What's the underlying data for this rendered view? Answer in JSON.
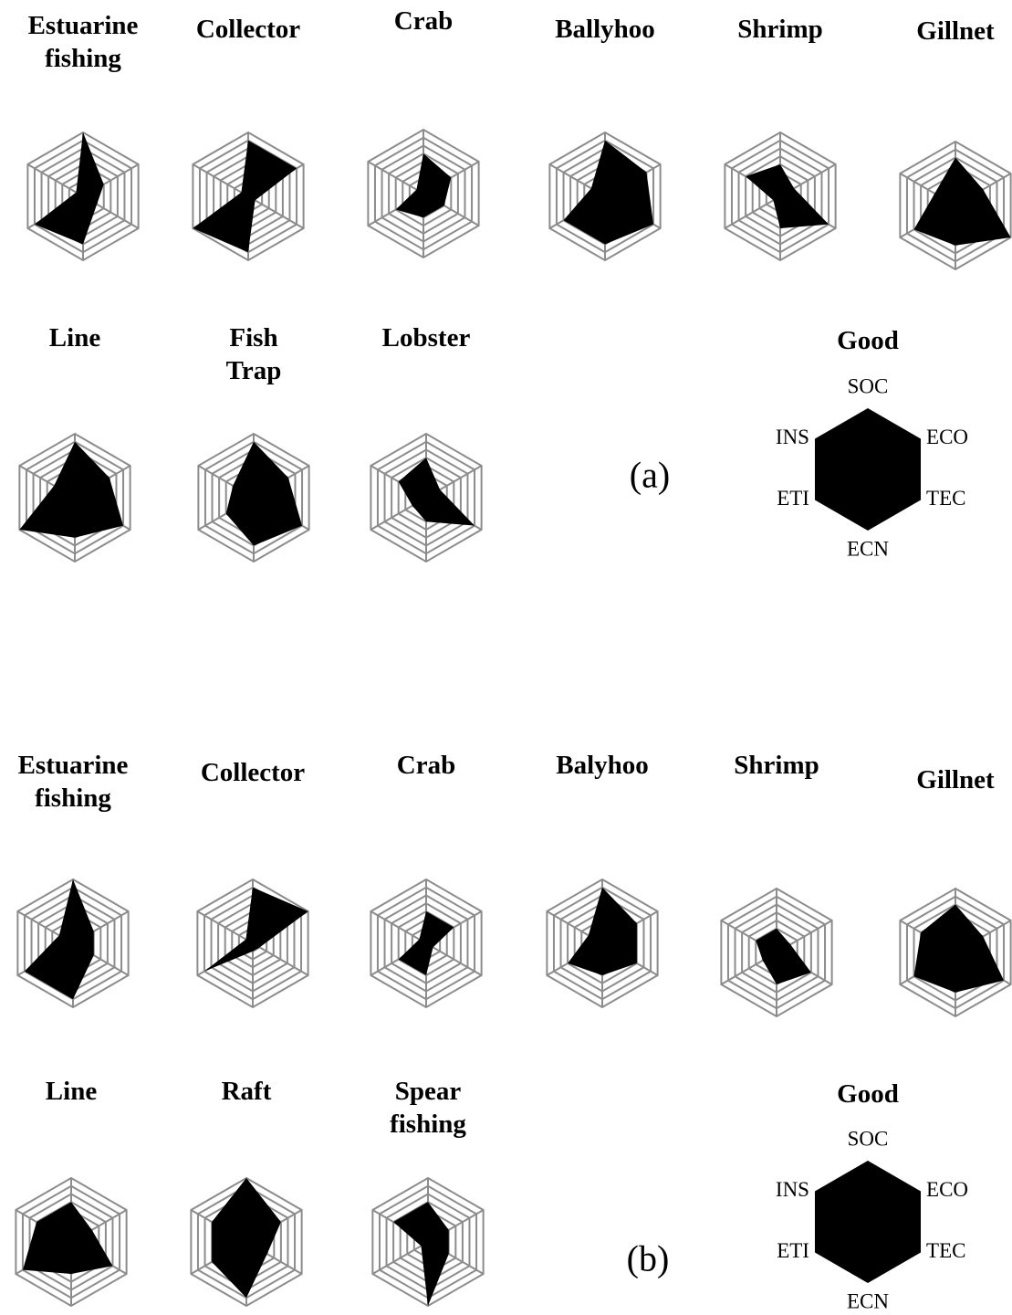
{
  "chart_data": [
    {
      "type": "radar",
      "title": "Estuarine fishing",
      "values": [
        8,
        3,
        2,
        6,
        7,
        1
      ],
      "ylim": [
        0,
        8
      ],
      "yticks": [
        1,
        2,
        3,
        4,
        5,
        6,
        7,
        8
      ],
      "color": "#000000"
    },
    {
      "type": "radar",
      "title": "Collector",
      "values": [
        7,
        7,
        1,
        7,
        8,
        1
      ],
      "ylim": [
        0,
        8
      ],
      "yticks": [
        1,
        2,
        3,
        4,
        5,
        6,
        7,
        8
      ],
      "color": "#000000"
    },
    {
      "type": "radar",
      "title": "Crab",
      "values": [
        5,
        4,
        3,
        3,
        4,
        1
      ],
      "ylim": [
        0,
        8
      ],
      "yticks": [
        1,
        2,
        3,
        4,
        5,
        6,
        7,
        8
      ],
      "color": "#000000"
    },
    {
      "type": "radar",
      "title": "Ballyhoo",
      "values": [
        7,
        6,
        7,
        6,
        6,
        2
      ],
      "ylim": [
        0,
        8
      ],
      "yticks": [
        1,
        2,
        3,
        4,
        5,
        6,
        7,
        8
      ],
      "color": "#000000"
    },
    {
      "type": "radar",
      "title": "Shrimp",
      "values": [
        4,
        2,
        7,
        4,
        1,
        5
      ],
      "ylim": [
        0,
        8
      ],
      "yticks": [
        1,
        2,
        3,
        4,
        5,
        6,
        7,
        8
      ],
      "color": "#000000"
    },
    {
      "type": "radar",
      "title": "Gillnet",
      "values": [
        6,
        4,
        8,
        5,
        6,
        3
      ],
      "ylim": [
        0,
        8
      ],
      "yticks": [
        1,
        2,
        3,
        4,
        5,
        6,
        7,
        8
      ],
      "color": "#000000"
    },
    {
      "type": "radar",
      "title": "Line",
      "values": [
        7,
        5,
        7,
        5,
        8,
        3
      ],
      "ylim": [
        0,
        8
      ],
      "yticks": [
        1,
        2,
        3,
        4,
        5,
        6,
        7,
        8
      ],
      "color": "#000000"
    },
    {
      "type": "radar",
      "title": "Fish Trap",
      "values": [
        7,
        5,
        7,
        6,
        4,
        3
      ],
      "ylim": [
        0,
        8
      ],
      "yticks": [
        1,
        2,
        3,
        4,
        5,
        6,
        7,
        8
      ],
      "color": "#000000"
    },
    {
      "type": "radar",
      "title": "Lobster",
      "values": [
        5,
        2,
        7,
        3,
        2,
        4
      ],
      "ylim": [
        0,
        8
      ],
      "yticks": [
        1,
        2,
        3,
        4,
        5,
        6,
        7,
        8
      ],
      "color": "#000000"
    },
    {
      "type": "radar",
      "title": "Good",
      "categories": [
        "SOC",
        "ECO",
        "TEC",
        "ECN",
        "ETI",
        "INS"
      ],
      "values": [
        8,
        8,
        8,
        8,
        8,
        8
      ],
      "ylim": [
        0,
        8
      ],
      "color": "#000000"
    },
    {
      "type": "radar",
      "title": "Estuarine fishing",
      "values": [
        8,
        3,
        3,
        7,
        7,
        2
      ],
      "ylim": [
        0,
        8
      ],
      "yticks": [
        1,
        2,
        3,
        4,
        5,
        6,
        7,
        8
      ],
      "color": "#000000"
    },
    {
      "type": "radar",
      "title": "Collector",
      "values": [
        7,
        8,
        1,
        1,
        7,
        1
      ],
      "ylim": [
        0,
        8
      ],
      "yticks": [
        1,
        2,
        3,
        4,
        5,
        6,
        7,
        8
      ],
      "color": "#000000"
    },
    {
      "type": "radar",
      "title": "Crab",
      "values": [
        4,
        4,
        1,
        4,
        4,
        1
      ],
      "ylim": [
        0,
        8
      ],
      "yticks": [
        1,
        2,
        3,
        4,
        5,
        6,
        7,
        8
      ],
      "color": "#000000"
    },
    {
      "type": "radar",
      "title": "Balyhoo",
      "values": [
        7,
        5,
        5,
        4,
        5,
        2
      ],
      "ylim": [
        0,
        8
      ],
      "yticks": [
        1,
        2,
        3,
        4,
        5,
        6,
        7,
        8
      ],
      "color": "#000000"
    },
    {
      "type": "radar",
      "title": "Shrimp",
      "values": [
        3,
        2,
        5,
        4,
        2,
        3
      ],
      "ylim": [
        0,
        8
      ],
      "yticks": [
        1,
        2,
        3,
        4,
        5,
        6,
        7,
        8
      ],
      "color": "#000000"
    },
    {
      "type": "radar",
      "title": "Gillnet",
      "values": [
        6,
        4,
        7,
        5,
        6,
        5
      ],
      "ylim": [
        0,
        8
      ],
      "yticks": [
        1,
        2,
        3,
        4,
        5,
        6,
        7,
        8
      ],
      "color": "#000000"
    },
    {
      "type": "radar",
      "title": "Line",
      "values": [
        5,
        3,
        6,
        4,
        7,
        5
      ],
      "ylim": [
        0,
        8
      ],
      "yticks": [
        1,
        2,
        3,
        4,
        5,
        6,
        7,
        8
      ],
      "color": "#000000"
    },
    {
      "type": "radar",
      "title": "Raft",
      "values": [
        8,
        5,
        3,
        7,
        5,
        5
      ],
      "ylim": [
        0,
        8
      ],
      "yticks": [
        1,
        2,
        3,
        4,
        5,
        6,
        7,
        8
      ],
      "color": "#000000"
    },
    {
      "type": "radar",
      "title": "Spear fishing",
      "values": [
        5,
        3,
        3,
        8,
        1,
        5
      ],
      "ylim": [
        0,
        8
      ],
      "yticks": [
        1,
        2,
        3,
        4,
        5,
        6,
        7,
        8
      ],
      "color": "#000000"
    },
    {
      "type": "radar",
      "title": "Good",
      "categories": [
        "SOC",
        "ECO",
        "TEC",
        "ECN",
        "ETI",
        "INS"
      ],
      "values": [
        8,
        8,
        8,
        8,
        8,
        8
      ],
      "ylim": [
        0,
        8
      ],
      "color": "#000000"
    }
  ],
  "annotations": [
    "(a)",
    "(b)"
  ]
}
